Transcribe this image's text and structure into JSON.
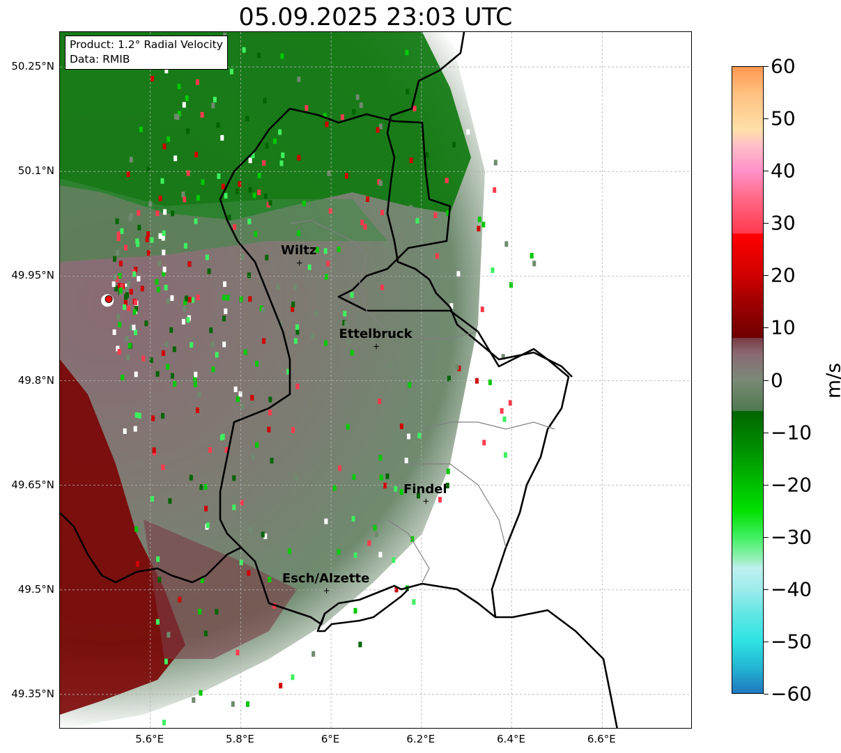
{
  "title": "05.09.2025 23:03 UTC",
  "info": {
    "product": "Product: 1.2° Radial Velocity",
    "data_source": "Data: RMIB"
  },
  "axes": {
    "lat_ticks": [
      "50.25°N",
      "50.1°N",
      "49.95°N",
      "49.8°N",
      "49.65°N",
      "49.5°N",
      "49.35°N"
    ],
    "lon_ticks": [
      "5.6°E",
      "5.8°E",
      "6°E",
      "6.2°E",
      "6.4°E",
      "6.6°E"
    ],
    "lat_values": [
      50.25,
      50.1,
      49.95,
      49.8,
      49.65,
      49.5,
      49.35
    ],
    "lon_values": [
      5.6,
      5.8,
      6.0,
      6.2,
      6.4,
      6.6
    ],
    "lat_range": [
      49.3,
      50.3
    ],
    "lon_range": [
      5.4,
      6.8
    ],
    "grid": true
  },
  "cities": [
    {
      "name": "Wiltz",
      "lat": 49.97,
      "lon": 5.93
    },
    {
      "name": "Ettelbruck",
      "lat": 49.85,
      "lon": 6.1
    },
    {
      "name": "Findel",
      "lat": 49.628,
      "lon": 6.21
    },
    {
      "name": "Esch/Alzette",
      "lat": 49.5,
      "lon": 5.99
    }
  ],
  "radar_site": {
    "lat": 49.915,
    "lon": 5.505
  },
  "colorbar": {
    "unit": "m/s",
    "min": -60,
    "max": 60,
    "ticks": [
      {
        "value": 60,
        "label": "60"
      },
      {
        "value": 50,
        "label": "50"
      },
      {
        "value": 40,
        "label": "40"
      },
      {
        "value": 30,
        "label": "30"
      },
      {
        "value": 20,
        "label": "20"
      },
      {
        "value": 10,
        "label": "10"
      },
      {
        "value": 0,
        "label": "0"
      },
      {
        "value": -10,
        "label": "−10"
      },
      {
        "value": -20,
        "label": "−20"
      },
      {
        "value": -30,
        "label": "−30"
      },
      {
        "value": -40,
        "label": "−40"
      },
      {
        "value": -50,
        "label": "−50"
      },
      {
        "value": -60,
        "label": "−60"
      }
    ],
    "stops": [
      {
        "value": -60,
        "color": "#1f78c0"
      },
      {
        "value": -55,
        "color": "#23b6d2"
      },
      {
        "value": -50,
        "color": "#2ee3e3"
      },
      {
        "value": -45,
        "color": "#5fe6e4"
      },
      {
        "value": -40,
        "color": "#9eecec"
      },
      {
        "value": -36,
        "color": "#bff0f0"
      },
      {
        "value": -34,
        "color": "#8ff0b0"
      },
      {
        "value": -30,
        "color": "#3ff060"
      },
      {
        "value": -25,
        "color": "#00e000"
      },
      {
        "value": -18,
        "color": "#00b000"
      },
      {
        "value": -12,
        "color": "#008800"
      },
      {
        "value": -6,
        "color": "#006400"
      },
      {
        "value": -5.9,
        "color": "#4e7a4e"
      },
      {
        "value": 0,
        "color": "#7a8a77"
      },
      {
        "value": 5,
        "color": "#8a6a74"
      },
      {
        "value": 8,
        "color": "#7a3c44"
      },
      {
        "value": 8.1,
        "color": "#6e0000"
      },
      {
        "value": 15,
        "color": "#a00000"
      },
      {
        "value": 20,
        "color": "#d00000"
      },
      {
        "value": 28,
        "color": "#ff0000"
      },
      {
        "value": 28.1,
        "color": "#ff3a4e"
      },
      {
        "value": 35,
        "color": "#ff6a88"
      },
      {
        "value": 40,
        "color": "#ff90c8"
      },
      {
        "value": 45,
        "color": "#ffc0c8"
      },
      {
        "value": 48,
        "color": "#ffe0a8"
      },
      {
        "value": 55,
        "color": "#ffc080"
      },
      {
        "value": 60,
        "color": "#ff9850"
      }
    ]
  }
}
